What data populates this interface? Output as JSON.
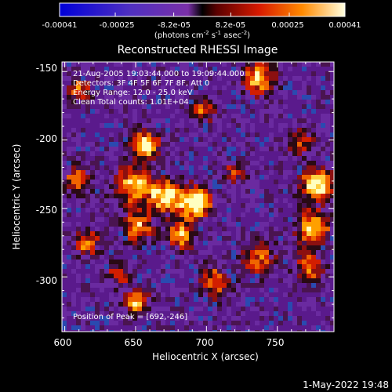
{
  "colorbar": {
    "ticks": [
      {
        "label": "-0.00041",
        "value": -0.00041
      },
      {
        "label": "-0.00025",
        "value": -0.00025
      },
      {
        "label": "-8.2e-05",
        "value": -8.2e-05
      },
      {
        "label": "8.2e-05",
        "value": 8.2e-05
      },
      {
        "label": "0.00025",
        "value": 0.00025
      },
      {
        "label": "0.00041",
        "value": 0.00041
      }
    ],
    "unit_label": {
      "prefix": "(photons cm",
      "exp1": "-2",
      "mid1": " s",
      "exp2": "-1",
      "mid2": " asec",
      "exp3": "-2",
      "suffix": ")"
    }
  },
  "plot": {
    "title": "Reconstructed RHESSI Image",
    "xlabel": "Heliocentric X (arcsec)",
    "ylabel": "Heliocentric Y (arcsec)",
    "x_ticks": [
      "600",
      "650",
      "700",
      "750"
    ],
    "y_ticks": [
      "-150",
      "-200",
      "-250",
      "-300"
    ],
    "info_lines": [
      "21-Aug-2005 19:03:44.000 to 19:09:44.000",
      "Detectors: 3F 4F 5F 6F 7F 8F, Att 0",
      "Energy Range: 12.0 - 25.0 keV",
      "Clean     Total counts: 1.01E+04"
    ],
    "peak_label": "Position of Peak = [692,-246]",
    "peak": {
      "x": 692,
      "y": -246
    },
    "xrange": [
      598,
      790
    ],
    "yrange": [
      -340,
      -143
    ]
  },
  "timestamp": "1-May-2022 19:48"
}
